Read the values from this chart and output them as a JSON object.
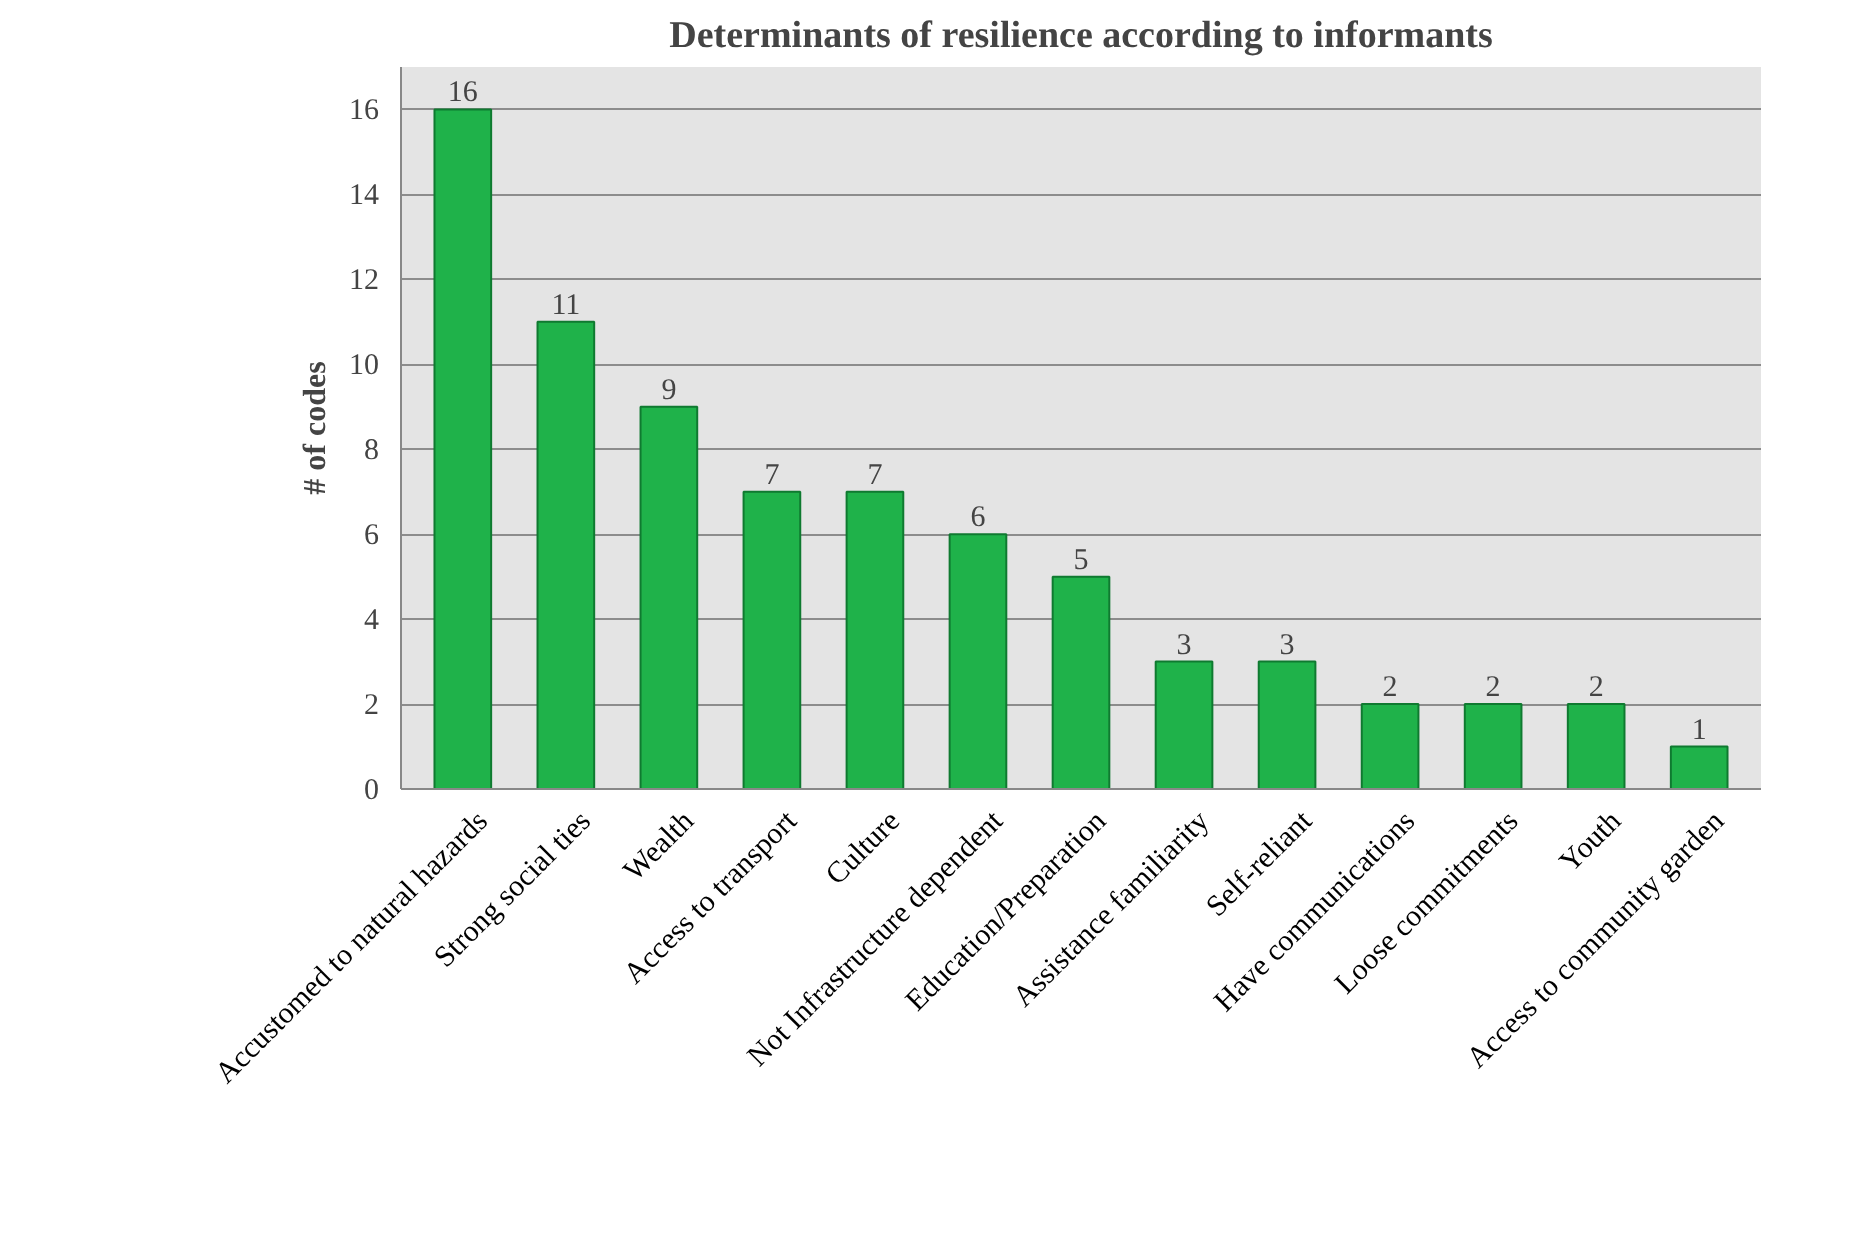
{
  "chart_data": {
    "type": "bar",
    "title": "Determinants of resilience according to informants",
    "ylabel": "# of codes",
    "categories": [
      "Accustomed to natural hazards",
      "Strong social ties",
      "Wealth",
      "Access to transport",
      "Culture",
      "Not Infrastructure dependent",
      "Education/Preparation",
      "Assistance familiarity",
      "Self-reliant",
      "Have communications",
      "Loose commitments",
      "Youth",
      "Access to community garden"
    ],
    "values": [
      16,
      11,
      9,
      7,
      7,
      6,
      5,
      3,
      3,
      2,
      2,
      2,
      1
    ],
    "color": "#1fb24a",
    "ylim": [
      0,
      17
    ],
    "yticks": [
      0,
      2,
      4,
      6,
      8,
      10,
      12,
      14,
      16
    ],
    "grid": "y",
    "data_labels": true
  }
}
